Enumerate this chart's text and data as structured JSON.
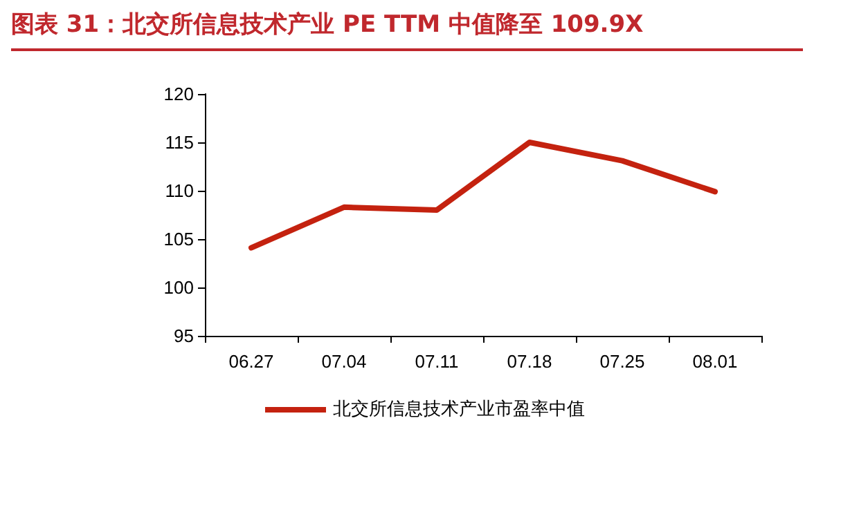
{
  "chart_data": {
    "type": "line",
    "title": "图表 31：北交所信息技术产业 PE TTM 中值降至 109.9X",
    "categories": [
      "06.27",
      "07.04",
      "07.11",
      "07.18",
      "07.25",
      "08.01"
    ],
    "series": [
      {
        "name": "北交所信息技术产业市盈率中值",
        "color": "#c4220f",
        "values": [
          104.1,
          108.3,
          108.0,
          115.0,
          113.1,
          109.9
        ]
      }
    ],
    "ylim": [
      95,
      120
    ],
    "yticks": [
      95,
      100,
      105,
      110,
      115,
      120
    ],
    "grid": false,
    "legend": "bottom",
    "marker": "none",
    "line_style": "solid"
  }
}
